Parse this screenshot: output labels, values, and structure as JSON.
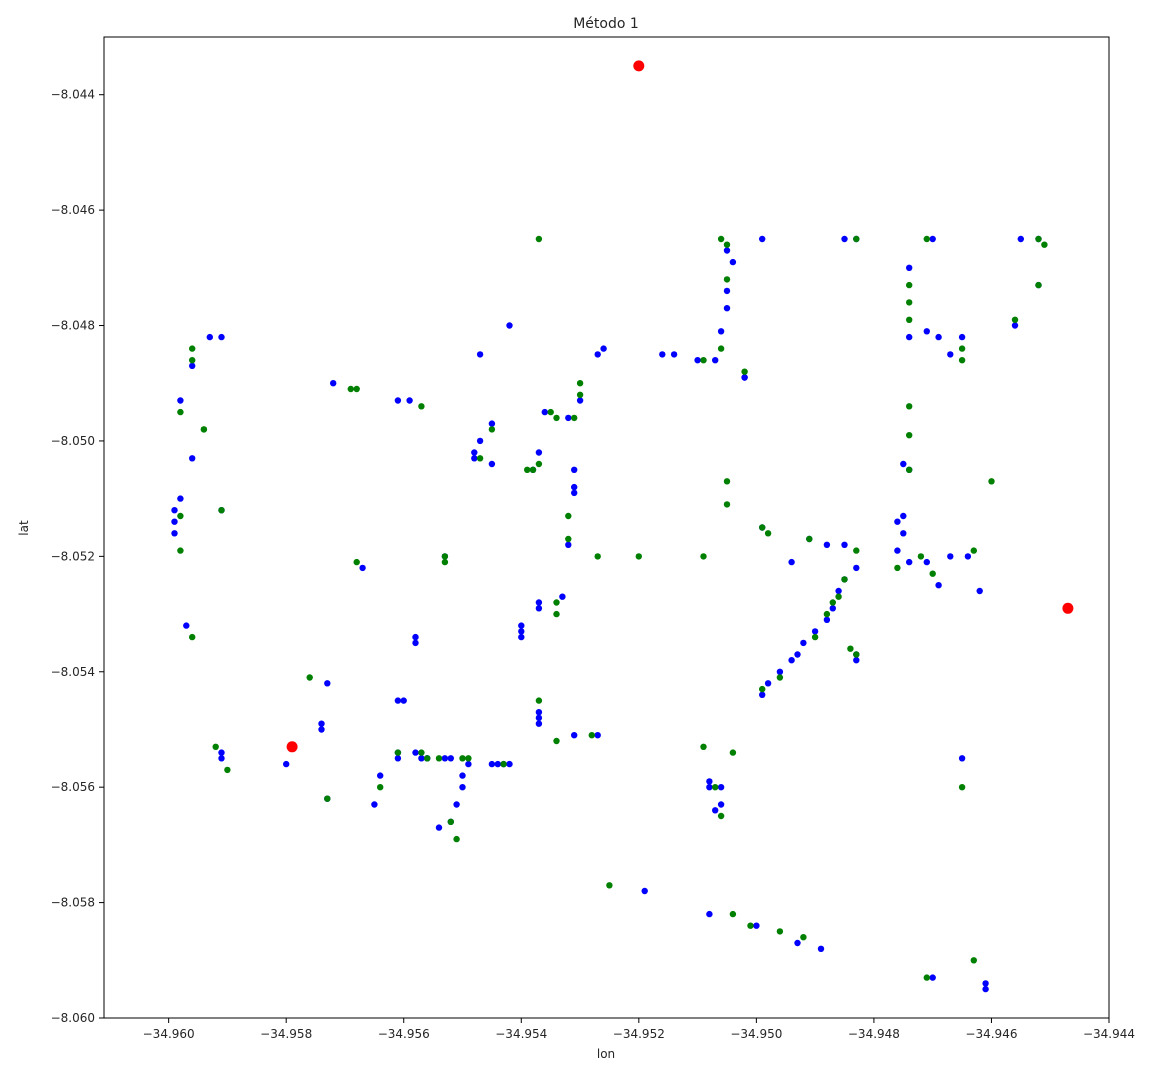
{
  "chart_data": {
    "type": "scatter",
    "title": "Método 1",
    "xlabel": "lon",
    "ylabel": "lat",
    "xlim": [
      -34.9611,
      -34.944
    ],
    "ylim": [
      -8.06,
      -8.043
    ],
    "grid": false,
    "x_ticks": [
      "−34.960",
      "−34.958",
      "−34.956",
      "−34.954",
      "−34.952",
      "−34.950",
      "−34.948",
      "−34.946",
      "−34.944"
    ],
    "y_ticks": [
      "−8.044",
      "−8.046",
      "−8.048",
      "−8.050",
      "−8.052",
      "−8.054",
      "−8.056",
      "−8.058",
      "−8.060"
    ],
    "x_tick_values": [
      -34.96,
      -34.958,
      -34.956,
      -34.954,
      -34.952,
      -34.95,
      -34.948,
      -34.946,
      -34.944
    ],
    "y_tick_values": [
      -8.044,
      -8.046,
      -8.048,
      -8.05,
      -8.052,
      -8.054,
      -8.056,
      -8.058,
      -8.06
    ],
    "series": [
      {
        "color": "#0000ff",
        "size": "small",
        "points": [
          [
            -34.9596,
            -8.0487
          ],
          [
            -34.9593,
            -8.0482
          ],
          [
            -34.9591,
            -8.0482
          ],
          [
            -34.9598,
            -8.0493
          ],
          [
            -34.9596,
            -8.0503
          ],
          [
            -34.9598,
            -8.051
          ],
          [
            -34.9599,
            -8.0512
          ],
          [
            -34.9599,
            -8.0514
          ],
          [
            -34.9599,
            -8.0516
          ],
          [
            -34.9591,
            -8.0512
          ],
          [
            -34.9597,
            -8.0532
          ],
          [
            -34.9591,
            -8.0555
          ],
          [
            -34.9591,
            -8.0554
          ],
          [
            -34.9572,
            -8.049
          ],
          [
            -34.9561,
            -8.0493
          ],
          [
            -34.9559,
            -8.0493
          ],
          [
            -34.9567,
            -8.0522
          ],
          [
            -34.9574,
            -8.055
          ],
          [
            -34.9574,
            -8.0549
          ],
          [
            -34.9573,
            -8.0542
          ],
          [
            -34.958,
            -8.0556
          ],
          [
            -34.9561,
            -8.0545
          ],
          [
            -34.956,
            -8.0545
          ],
          [
            -34.9561,
            -8.0555
          ],
          [
            -34.9561,
            -8.0554
          ],
          [
            -34.9565,
            -8.0563
          ],
          [
            -34.9564,
            -8.0558
          ],
          [
            -34.9573,
            -8.0562
          ],
          [
            -34.9558,
            -8.0554
          ],
          [
            -34.9557,
            -8.0555
          ],
          [
            -34.9556,
            -8.0555
          ],
          [
            -34.9556,
            -8.0555
          ],
          [
            -34.9553,
            -8.0555
          ],
          [
            -34.9552,
            -8.0555
          ],
          [
            -34.9549,
            -8.0556
          ],
          [
            -34.955,
            -8.0558
          ],
          [
            -34.955,
            -8.056
          ],
          [
            -34.9551,
            -8.0563
          ],
          [
            -34.9552,
            -8.0566
          ],
          [
            -34.9554,
            -8.0567
          ],
          [
            -34.9553,
            -8.052
          ],
          [
            -34.9558,
            -8.0534
          ],
          [
            -34.9558,
            -8.0535
          ],
          [
            -34.9547,
            -8.0485
          ],
          [
            -34.9542,
            -8.048
          ],
          [
            -34.9545,
            -8.0497
          ],
          [
            -34.9547,
            -8.05
          ],
          [
            -34.9548,
            -8.0502
          ],
          [
            -34.9548,
            -8.0503
          ],
          [
            -34.9545,
            -8.0504
          ],
          [
            -34.9537,
            -8.0502
          ],
          [
            -34.9538,
            -8.0505
          ],
          [
            -34.9531,
            -8.0505
          ],
          [
            -34.9531,
            -8.0508
          ],
          [
            -34.9531,
            -8.0509
          ],
          [
            -34.9537,
            -8.0528
          ],
          [
            -34.9537,
            -8.0529
          ],
          [
            -34.954,
            -8.0532
          ],
          [
            -34.954,
            -8.0533
          ],
          [
            -34.954,
            -8.0534
          ],
          [
            -34.9533,
            -8.0527
          ],
          [
            -34.9532,
            -8.0518
          ],
          [
            -34.9531,
            -8.0551
          ],
          [
            -34.9537,
            -8.0547
          ],
          [
            -34.9537,
            -8.0548
          ],
          [
            -34.9537,
            -8.0549
          ],
          [
            -34.9527,
            -8.0551
          ],
          [
            -34.9545,
            -8.0556
          ],
          [
            -34.9544,
            -8.0556
          ],
          [
            -34.9543,
            -8.0556
          ],
          [
            -34.9542,
            -8.0556
          ],
          [
            -34.9536,
            -8.0495
          ],
          [
            -34.9532,
            -8.0496
          ],
          [
            -34.953,
            -8.0493
          ],
          [
            -34.9527,
            -8.0485
          ],
          [
            -34.9526,
            -8.0484
          ],
          [
            -34.9516,
            -8.0485
          ],
          [
            -34.9514,
            -8.0485
          ],
          [
            -34.951,
            -8.0486
          ],
          [
            -34.9507,
            -8.0486
          ],
          [
            -34.9506,
            -8.0481
          ],
          [
            -34.9505,
            -8.0477
          ],
          [
            -34.9505,
            -8.0474
          ],
          [
            -34.9504,
            -8.0469
          ],
          [
            -34.9505,
            -8.0467
          ],
          [
            -34.9502,
            -8.0489
          ],
          [
            -34.9502,
            -8.0489
          ],
          [
            -34.9499,
            -8.0465
          ],
          [
            -34.9485,
            -8.0465
          ],
          [
            -34.9483,
            -8.0465
          ],
          [
            -34.947,
            -8.0465
          ],
          [
            -34.9471,
            -8.0481
          ],
          [
            -34.9469,
            -8.0482
          ],
          [
            -34.9467,
            -8.0485
          ],
          [
            -34.9465,
            -8.0482
          ],
          [
            -34.9474,
            -8.047
          ],
          [
            -34.9474,
            -8.0482
          ],
          [
            -34.9475,
            -8.0504
          ],
          [
            -34.9474,
            -8.0505
          ],
          [
            -34.9475,
            -8.0513
          ],
          [
            -34.9476,
            -8.0514
          ],
          [
            -34.9475,
            -8.0516
          ],
          [
            -34.9455,
            -8.0465
          ],
          [
            -34.9452,
            -8.0465
          ],
          [
            -34.9452,
            -8.0473
          ],
          [
            -34.9456,
            -8.048
          ],
          [
            -34.9499,
            -8.0515
          ],
          [
            -34.9494,
            -8.0521
          ],
          [
            -34.9491,
            -8.0517
          ],
          [
            -34.9488,
            -8.0518
          ],
          [
            -34.9485,
            -8.0518
          ],
          [
            -34.9476,
            -8.0519
          ],
          [
            -34.9474,
            -8.0521
          ],
          [
            -34.9471,
            -8.0521
          ],
          [
            -34.9467,
            -8.052
          ],
          [
            -34.9464,
            -8.052
          ],
          [
            -34.9462,
            -8.0526
          ],
          [
            -34.9483,
            -8.0522
          ],
          [
            -34.9485,
            -8.0524
          ],
          [
            -34.9486,
            -8.0526
          ],
          [
            -34.9487,
            -8.0529
          ],
          [
            -34.9488,
            -8.0531
          ],
          [
            -34.949,
            -8.0533
          ],
          [
            -34.9492,
            -8.0535
          ],
          [
            -34.9493,
            -8.0537
          ],
          [
            -34.9494,
            -8.0538
          ],
          [
            -34.9496,
            -8.054
          ],
          [
            -34.9498,
            -8.0542
          ],
          [
            -34.9499,
            -8.0544
          ],
          [
            -34.9483,
            -8.0537
          ],
          [
            -34.9483,
            -8.0538
          ],
          [
            -34.9469,
            -8.0525
          ],
          [
            -34.9465,
            -8.0555
          ],
          [
            -34.9508,
            -8.0559
          ],
          [
            -34.9508,
            -8.056
          ],
          [
            -34.9507,
            -8.0564
          ],
          [
            -34.9506,
            -8.0563
          ],
          [
            -34.9506,
            -8.056
          ],
          [
            -34.9519,
            -8.0578
          ],
          [
            -34.9508,
            -8.0582
          ],
          [
            -34.95,
            -8.0584
          ],
          [
            -34.9493,
            -8.0587
          ],
          [
            -34.9489,
            -8.0588
          ],
          [
            -34.947,
            -8.0593
          ],
          [
            -34.9461,
            -8.0594
          ],
          [
            -34.9461,
            -8.0595
          ]
        ]
      },
      {
        "color": "#008000",
        "size": "small",
        "points": [
          [
            -34.9596,
            -8.0484
          ],
          [
            -34.9596,
            -8.0486
          ],
          [
            -34.9598,
            -8.0495
          ],
          [
            -34.9594,
            -8.0498
          ],
          [
            -34.9594,
            -8.0498
          ],
          [
            -34.9598,
            -8.0513
          ],
          [
            -34.9598,
            -8.0519
          ],
          [
            -34.9591,
            -8.0512
          ],
          [
            -34.9596,
            -8.0534
          ],
          [
            -34.9592,
            -8.0553
          ],
          [
            -34.959,
            -8.0557
          ],
          [
            -34.9569,
            -8.0491
          ],
          [
            -34.9568,
            -8.0491
          ],
          [
            -34.9557,
            -8.0494
          ],
          [
            -34.9568,
            -8.0521
          ],
          [
            -34.9576,
            -8.0541
          ],
          [
            -34.9573,
            -8.0562
          ],
          [
            -34.9564,
            -8.056
          ],
          [
            -34.9561,
            -8.0554
          ],
          [
            -34.9557,
            -8.0554
          ],
          [
            -34.9556,
            -8.0555
          ],
          [
            -34.9554,
            -8.0555
          ],
          [
            -34.955,
            -8.0555
          ],
          [
            -34.9549,
            -8.0555
          ],
          [
            -34.9552,
            -8.0566
          ],
          [
            -34.9551,
            -8.0569
          ],
          [
            -34.9553,
            -8.052
          ],
          [
            -34.9553,
            -8.0521
          ],
          [
            -34.9547,
            -8.0503
          ],
          [
            -34.9545,
            -8.0498
          ],
          [
            -34.9538,
            -8.0505
          ],
          [
            -34.9537,
            -8.0504
          ],
          [
            -34.9539,
            -8.0505
          ],
          [
            -34.9535,
            -8.0495
          ],
          [
            -34.9534,
            -8.0496
          ],
          [
            -34.9531,
            -8.0496
          ],
          [
            -34.9532,
            -8.0513
          ],
          [
            -34.9532,
            -8.0517
          ],
          [
            -34.9534,
            -8.0528
          ],
          [
            -34.9534,
            -8.053
          ],
          [
            -34.953,
            -8.0492
          ],
          [
            -34.953,
            -8.049
          ],
          [
            -34.9534,
            -8.0552
          ],
          [
            -34.9537,
            -8.0545
          ],
          [
            -34.9528,
            -8.0551
          ],
          [
            -34.9543,
            -8.0556
          ],
          [
            -34.9537,
            -8.0465
          ],
          [
            -34.9527,
            -8.052
          ],
          [
            -34.952,
            -8.052
          ],
          [
            -34.9509,
            -8.052
          ],
          [
            -34.9509,
            -8.0486
          ],
          [
            -34.9506,
            -8.0484
          ],
          [
            -34.9506,
            -8.0465
          ],
          [
            -34.9505,
            -8.0466
          ],
          [
            -34.9505,
            -8.0472
          ],
          [
            -34.9502,
            -8.0488
          ],
          [
            -34.9505,
            -8.0507
          ],
          [
            -34.9505,
            -8.0511
          ],
          [
            -34.9499,
            -8.0515
          ],
          [
            -34.9498,
            -8.0516
          ],
          [
            -34.9483,
            -8.0465
          ],
          [
            -34.9471,
            -8.0465
          ],
          [
            -34.9474,
            -8.0473
          ],
          [
            -34.9474,
            -8.0476
          ],
          [
            -34.9474,
            -8.0479
          ],
          [
            -34.9465,
            -8.0484
          ],
          [
            -34.9465,
            -8.0486
          ],
          [
            -34.9474,
            -8.0494
          ],
          [
            -34.9474,
            -8.0499
          ],
          [
            -34.9474,
            -8.0505
          ],
          [
            -34.946,
            -8.0507
          ],
          [
            -34.9452,
            -8.0465
          ],
          [
            -34.9451,
            -8.0466
          ],
          [
            -34.9452,
            -8.0473
          ],
          [
            -34.9456,
            -8.0479
          ],
          [
            -34.9491,
            -8.0517
          ],
          [
            -34.9483,
            -8.0519
          ],
          [
            -34.9476,
            -8.0522
          ],
          [
            -34.9472,
            -8.052
          ],
          [
            -34.947,
            -8.0523
          ],
          [
            -34.9463,
            -8.0519
          ],
          [
            -34.9485,
            -8.0524
          ],
          [
            -34.9486,
            -8.0527
          ],
          [
            -34.9487,
            -8.0528
          ],
          [
            -34.9488,
            -8.053
          ],
          [
            -34.949,
            -8.0534
          ],
          [
            -34.9496,
            -8.0541
          ],
          [
            -34.9499,
            -8.0543
          ],
          [
            -34.9484,
            -8.0536
          ],
          [
            -34.9483,
            -8.0537
          ],
          [
            -34.9465,
            -8.056
          ],
          [
            -34.9509,
            -8.0553
          ],
          [
            -34.9506,
            -8.0565
          ],
          [
            -34.9504,
            -8.0554
          ],
          [
            -34.9507,
            -8.056
          ],
          [
            -34.9525,
            -8.0577
          ],
          [
            -34.9504,
            -8.0582
          ],
          [
            -34.9501,
            -8.0584
          ],
          [
            -34.9496,
            -8.0585
          ],
          [
            -34.9492,
            -8.0586
          ],
          [
            -34.9471,
            -8.0593
          ],
          [
            -34.9463,
            -8.059
          ]
        ]
      },
      {
        "color": "#ff0000",
        "size": "large",
        "points": [
          [
            -34.952,
            -8.0435
          ],
          [
            -34.9579,
            -8.0553
          ],
          [
            -34.9447,
            -8.0529
          ]
        ]
      }
    ]
  }
}
